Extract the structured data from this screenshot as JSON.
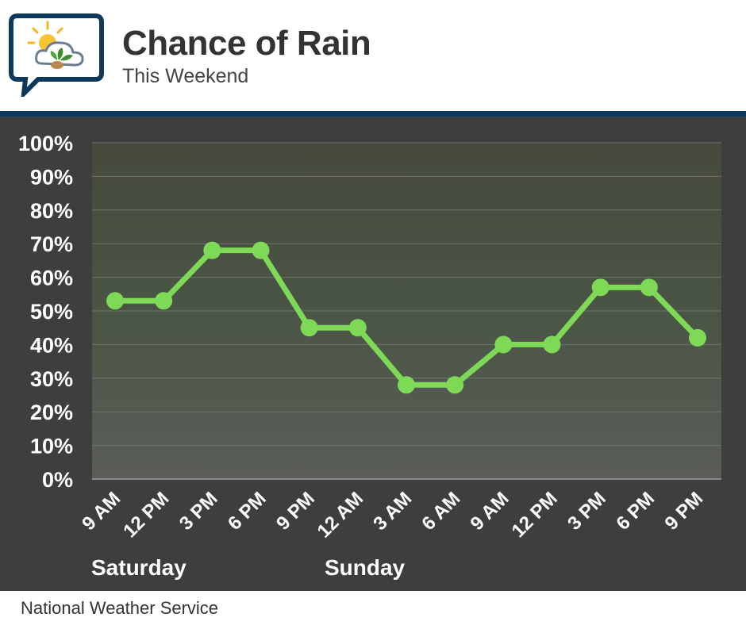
{
  "header": {
    "title": "Chance of Rain",
    "subtitle": "This Weekend"
  },
  "footer": {
    "source": "National Weather Service"
  },
  "colors": {
    "line": "#7ed957",
    "band": "#0d3a5c",
    "panel": "#3e3e3e",
    "text_light": "#ffffff"
  },
  "chart_data": {
    "type": "line",
    "x": [
      "9 AM",
      "12 PM",
      "3 PM",
      "6 PM",
      "9 PM",
      "12 AM",
      "3 AM",
      "6 AM",
      "9 AM",
      "12 PM",
      "3 PM",
      "6 PM",
      "9 PM"
    ],
    "series": [
      {
        "values": [
          53,
          53,
          68,
          68,
          45,
          45,
          28,
          28,
          40,
          40,
          57,
          57,
          42
        ]
      }
    ],
    "day_labels": [
      "Saturday",
      "Sunday"
    ],
    "yticks": [
      "0%",
      "10%",
      "20%",
      "30%",
      "40%",
      "50%",
      "60%",
      "70%",
      "80%",
      "90%",
      "100%"
    ],
    "ylim": [
      0,
      100
    ],
    "grid": true
  }
}
